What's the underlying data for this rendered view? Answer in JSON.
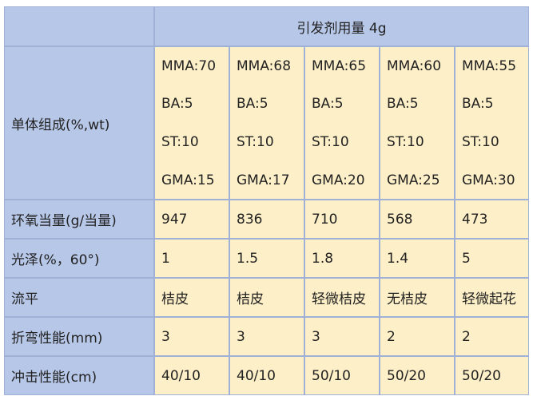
{
  "header": {
    "title": "引发剂用量 4g"
  },
  "composition": {
    "label": "单体组成(%,wt)",
    "rows": [
      [
        "MMA:70",
        "MMA:68",
        "MMA:65",
        "MMA:60",
        "MMA:55"
      ],
      [
        "BA:5",
        "BA:5",
        "BA:5",
        "BA:5",
        "BA:5"
      ],
      [
        "ST:10",
        "ST:10",
        "ST:10",
        "ST:10",
        "ST:10"
      ],
      [
        "GMA:15",
        "GMA:17",
        "GMA:20",
        "GMA:25",
        "GMA:30"
      ]
    ]
  },
  "properties": [
    {
      "label": "环氧当量(g/当量)",
      "values": [
        "947",
        "836",
        "710",
        "568",
        "473"
      ]
    },
    {
      "label": "光泽(%，60°)",
      "values": [
        "1",
        "1.5",
        "1.8",
        "1.4",
        "5"
      ]
    },
    {
      "label": "流平",
      "values": [
        "桔皮",
        "桔皮",
        "轻微桔皮",
        "无桔皮",
        "轻微起花"
      ]
    },
    {
      "label": "折弯性能(mm)",
      "values": [
        "3",
        "3",
        "3",
        "2",
        "2"
      ]
    },
    {
      "label": "冲击性能(cm)",
      "values": [
        "40/10",
        "40/10",
        "50/10",
        "50/20",
        "50/20"
      ]
    }
  ]
}
